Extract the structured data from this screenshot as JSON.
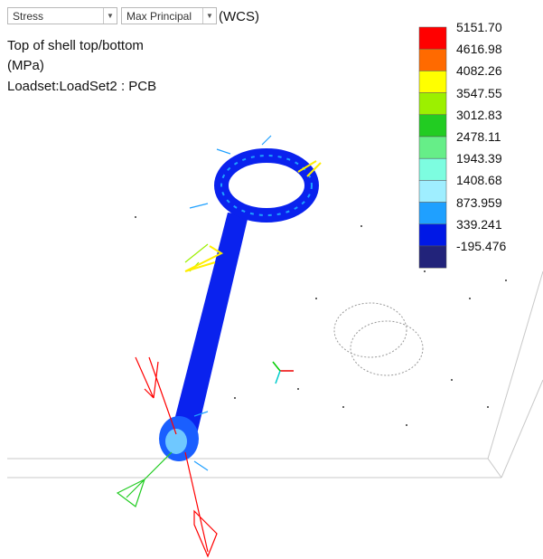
{
  "toolbar": {
    "result_type": "Stress",
    "component": "Max Principal",
    "coord_system": "(WCS)"
  },
  "info": {
    "location": "Top of shell top/bottom",
    "units": "(MPa)",
    "loadset": "Loadset:LoadSet2 :  PCB"
  },
  "legend": {
    "labels": [
      "5151.70",
      "4616.98",
      "4082.26",
      "3547.55",
      "3012.83",
      "2478.11",
      "1943.39",
      "1408.68",
      "873.959",
      "339.241",
      "-195.476"
    ],
    "colors": [
      "#ff0000",
      "#ff6a00",
      "#ffff00",
      "#9cf000",
      "#22cc22",
      "#66ee88",
      "#7dfde0",
      "#9feeff",
      "#1fa0ff",
      "#0018e6",
      "#22237a"
    ]
  }
}
